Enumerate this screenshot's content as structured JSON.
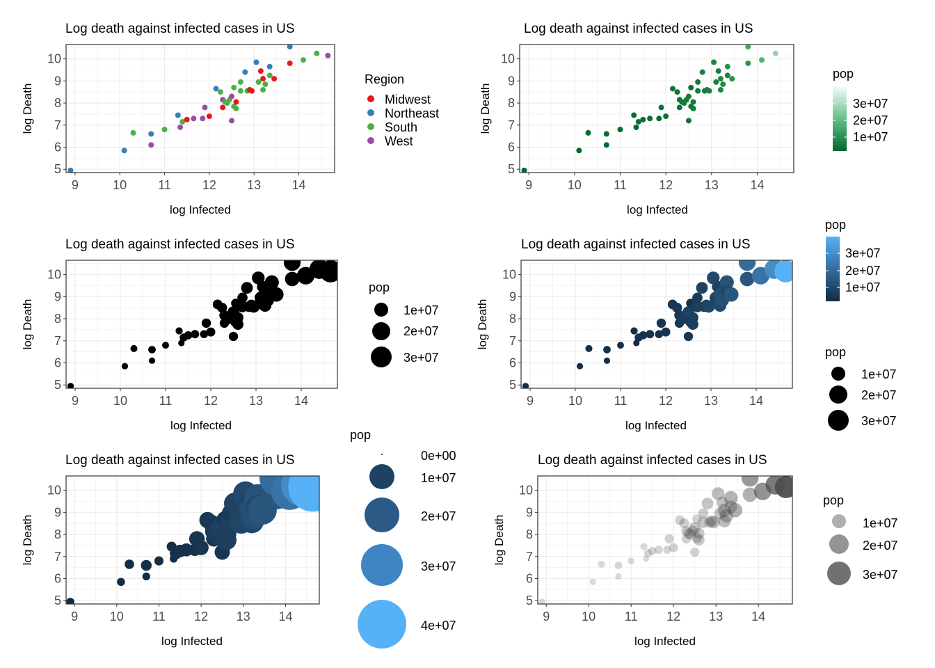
{
  "colors": {
    "midwest": "#E41A1C",
    "northeast": "#377EB8",
    "south": "#4DAF4A",
    "west": "#984EA3",
    "grid": "#EBEBEB",
    "axis_text": "#4D4D4D",
    "panel_border": "#333333",
    "greens_low": "#00692D",
    "greens_high": "#F7FCFD",
    "blue_low": "#132B43",
    "blue_high": "#56B1F7",
    "grey_point": "#4D4D4D"
  },
  "chart_data": [
    {
      "id": "p1",
      "type": "scatter",
      "title": "Log death against infected cases in US",
      "xlabel": "log Infected",
      "ylabel": "log Death",
      "xlim": [
        8.8,
        14.8
      ],
      "ylim": [
        4.85,
        10.65
      ],
      "xticks": [
        9,
        10,
        11,
        12,
        13,
        14
      ],
      "yticks": [
        5,
        6,
        7,
        8,
        9,
        10
      ],
      "grid": true,
      "encoding": "color by Region",
      "legend": {
        "title": "Region",
        "placement": "right",
        "entries": [
          "Midwest",
          "Northeast",
          "South",
          "West"
        ]
      }
    },
    {
      "id": "p2",
      "type": "scatter",
      "title": "Log death against infected cases in US",
      "xlabel": "log Infected",
      "ylabel": "log Death",
      "xlim": [
        8.8,
        14.8
      ],
      "ylim": [
        4.85,
        10.65
      ],
      "xticks": [
        9,
        10,
        11,
        12,
        13,
        14
      ],
      "yticks": [
        5,
        6,
        7,
        8,
        9,
        10
      ],
      "grid": true,
      "encoding": "color by pop (green gradient)",
      "legend": {
        "title": "pop",
        "placement": "right",
        "labels": [
          "3e+07",
          "2e+07",
          "1e+07"
        ]
      }
    },
    {
      "id": "p3",
      "type": "scatter",
      "title": "Log death against infected cases in US",
      "xlabel": "log Infected",
      "ylabel": "log Death",
      "xlim": [
        8.8,
        14.8
      ],
      "ylim": [
        4.85,
        10.65
      ],
      "xticks": [
        9,
        10,
        11,
        12,
        13,
        14
      ],
      "yticks": [
        5,
        6,
        7,
        8,
        9,
        10
      ],
      "grid": true,
      "encoding": "size by pop",
      "legend": {
        "title": "pop",
        "placement": "right",
        "labels": [
          "1e+07",
          "2e+07",
          "3e+07"
        ]
      }
    },
    {
      "id": "p4",
      "type": "scatter",
      "title": "Log death against infected cases in US",
      "xlabel": "log Infected",
      "ylabel": "log Death",
      "xlim": [
        8.8,
        14.8
      ],
      "ylim": [
        4.85,
        10.65
      ],
      "xticks": [
        9,
        10,
        11,
        12,
        13,
        14
      ],
      "yticks": [
        5,
        6,
        7,
        8,
        9,
        10
      ],
      "grid": true,
      "encoding": "size and color by pop",
      "legend_color": {
        "title": "pop",
        "placement": "right",
        "labels": [
          "3e+07",
          "2e+07",
          "1e+07"
        ]
      },
      "legend_size": {
        "title": "pop",
        "placement": "right",
        "labels": [
          "1e+07",
          "2e+07",
          "3e+07"
        ]
      }
    },
    {
      "id": "p5",
      "type": "scatter",
      "title": "Log death against infected cases in US",
      "xlabel": "log Infected",
      "ylabel": "log Death",
      "xlim": [
        8.8,
        14.8
      ],
      "ylim": [
        4.85,
        10.65
      ],
      "xticks": [
        9,
        10,
        11,
        12,
        13,
        14
      ],
      "yticks": [
        5,
        6,
        7,
        8,
        9,
        10
      ],
      "grid": true,
      "encoding": "size (area 0-based) and color by pop",
      "legend": {
        "title": "pop",
        "placement": "right",
        "labels": [
          "0e+00",
          "1e+07",
          "2e+07",
          "3e+07",
          "4e+07"
        ]
      }
    },
    {
      "id": "p6",
      "type": "scatter",
      "title": "Log death against infected cases in US",
      "xlabel": "log Infected",
      "ylabel": "log Death",
      "xlim": [
        8.8,
        14.8
      ],
      "ylim": [
        4.85,
        10.65
      ],
      "xticks": [
        9,
        10,
        11,
        12,
        13,
        14
      ],
      "yticks": [
        5,
        6,
        7,
        8,
        9,
        10
      ],
      "grid": true,
      "encoding": "size and alpha by pop",
      "legend": {
        "title": "pop",
        "placement": "right",
        "labels": [
          "1e+07",
          "2e+07",
          "3e+07"
        ]
      }
    }
  ],
  "points": [
    {
      "x": 8.9,
      "y": 4.95,
      "region": "Northeast",
      "pop": 0.62
    },
    {
      "x": 10.1,
      "y": 5.85,
      "region": "Northeast",
      "pop": 0.63
    },
    {
      "x": 10.3,
      "y": 6.65,
      "region": "South",
      "pop": 0.97
    },
    {
      "x": 10.7,
      "y": 6.6,
      "region": "Northeast",
      "pop": 1.33
    },
    {
      "x": 10.7,
      "y": 6.1,
      "region": "West",
      "pop": 0.58
    },
    {
      "x": 11.0,
      "y": 6.8,
      "region": "South",
      "pop": 0.89
    },
    {
      "x": 11.3,
      "y": 7.45,
      "region": "Northeast",
      "pop": 1.06
    },
    {
      "x": 11.35,
      "y": 6.9,
      "region": "West",
      "pop": 0.58
    },
    {
      "x": 11.4,
      "y": 7.15,
      "region": "South",
      "pop": 1.79
    },
    {
      "x": 11.5,
      "y": 7.25,
      "region": "Midwest",
      "pop": 1.93
    },
    {
      "x": 11.65,
      "y": 7.3,
      "region": "West",
      "pop": 2.1
    },
    {
      "x": 11.85,
      "y": 7.3,
      "region": "West",
      "pop": 1.79
    },
    {
      "x": 11.9,
      "y": 7.8,
      "region": "West",
      "pop": 3.2
    },
    {
      "x": 12.0,
      "y": 7.4,
      "region": "Midwest",
      "pop": 2.91
    },
    {
      "x": 12.15,
      "y": 8.65,
      "region": "Northeast",
      "pop": 3.57
    },
    {
      "x": 12.25,
      "y": 8.5,
      "region": "South",
      "pop": 3.96
    },
    {
      "x": 12.3,
      "y": 7.8,
      "region": "Midwest",
      "pop": 3.15
    },
    {
      "x": 12.3,
      "y": 8.15,
      "region": "West",
      "pop": 4.22
    },
    {
      "x": 12.35,
      "y": 8.05,
      "region": "South",
      "pop": 4.65
    },
    {
      "x": 12.4,
      "y": 8.0,
      "region": "South",
      "pop": 5.03
    },
    {
      "x": 12.45,
      "y": 8.15,
      "region": "South",
      "pop": 5.14
    },
    {
      "x": 12.5,
      "y": 8.3,
      "region": "West",
      "pop": 6.73
    },
    {
      "x": 12.5,
      "y": 7.2,
      "region": "West",
      "pop": 3.08
    },
    {
      "x": 12.55,
      "y": 7.85,
      "region": "South",
      "pop": 4.89
    },
    {
      "x": 12.55,
      "y": 8.7,
      "region": "South",
      "pop": 2.98
    },
    {
      "x": 12.6,
      "y": 8.05,
      "region": "Midwest",
      "pop": 5.61
    },
    {
      "x": 12.6,
      "y": 7.75,
      "region": "South",
      "pop": 5.77
    },
    {
      "x": 12.7,
      "y": 8.55,
      "region": "South",
      "pop": 6.04
    },
    {
      "x": 12.7,
      "y": 8.95,
      "region": "South",
      "pop": 4.47
    },
    {
      "x": 12.8,
      "y": 9.4,
      "region": "Northeast",
      "pop": 6.89
    },
    {
      "x": 12.85,
      "y": 8.55,
      "region": "South",
      "pop": 5.2
    },
    {
      "x": 12.9,
      "y": 8.6,
      "region": "Midwest",
      "pop": 6.73
    },
    {
      "x": 12.95,
      "y": 8.55,
      "region": "Midwest",
      "pop": 7.6
    },
    {
      "x": 13.05,
      "y": 9.85,
      "region": "Northeast",
      "pop": 8.88
    },
    {
      "x": 13.1,
      "y": 8.95,
      "region": "South",
      "pop": 7.29
    },
    {
      "x": 13.15,
      "y": 9.45,
      "region": "Midwest",
      "pop": 6.8
    },
    {
      "x": 13.2,
      "y": 9.1,
      "region": "Midwest",
      "pop": 10.0
    },
    {
      "x": 13.2,
      "y": 8.6,
      "region": "South",
      "pop": 8.54
    },
    {
      "x": 13.25,
      "y": 8.85,
      "region": "South",
      "pop": 10.6
    },
    {
      "x": 13.35,
      "y": 9.65,
      "region": "Northeast",
      "pop": 11.7
    },
    {
      "x": 13.35,
      "y": 9.25,
      "region": "South",
      "pop": 8.54
    },
    {
      "x": 13.45,
      "y": 9.1,
      "region": "Midwest",
      "pop": 12.7
    },
    {
      "x": 13.8,
      "y": 9.8,
      "region": "Midwest",
      "pop": 12.7
    },
    {
      "x": 13.8,
      "y": 10.55,
      "region": "Northeast",
      "pop": 19.5
    },
    {
      "x": 14.1,
      "y": 9.95,
      "region": "South",
      "pop": 21.5
    },
    {
      "x": 14.4,
      "y": 10.25,
      "region": "South",
      "pop": 29.0
    },
    {
      "x": 14.65,
      "y": 10.15,
      "region": "West",
      "pop": 39.5
    }
  ],
  "legend_region": [
    "Midwest",
    "Northeast",
    "South",
    "West"
  ],
  "legend_pop_3": [
    "1e+07",
    "2e+07",
    "3e+07"
  ],
  "legend_pop_3_rev": [
    "3e+07",
    "2e+07",
    "1e+07"
  ],
  "legend_pop_5": [
    "0e+00",
    "1e+07",
    "2e+07",
    "3e+07",
    "4e+07"
  ]
}
